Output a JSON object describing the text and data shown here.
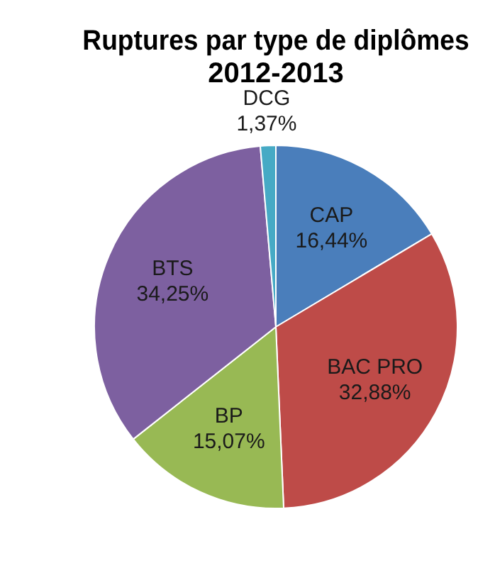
{
  "chart_data": {
    "type": "pie",
    "title": "Ruptures par type de diplômes\n2012-2013",
    "categories": [
      "CAP",
      "BAC PRO",
      "BP",
      "BTS",
      "DCG"
    ],
    "values": [
      16.44,
      32.88,
      15.07,
      34.25,
      1.37
    ],
    "value_labels": [
      "16,44%",
      "32,88%",
      "15,07%",
      "34,25%",
      "1,37%"
    ],
    "colors": [
      "#4a7ebb",
      "#be4b48",
      "#98b954",
      "#7d60a0",
      "#46aac5"
    ],
    "legend": false
  }
}
